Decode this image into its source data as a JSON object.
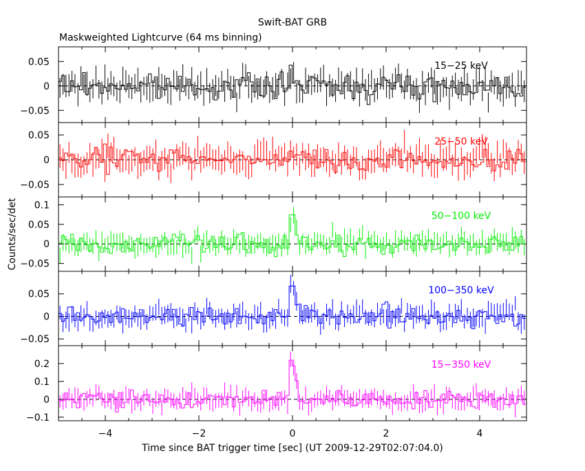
{
  "chart_data": {
    "type": "line",
    "title": "Swift-BAT GRB",
    "subtitle": "Maskweighted Lightcurve (64 ms binning)",
    "xlabel": "Time since BAT trigger time [sec] (UT 2009-12-29T02:07:04.0)",
    "ylabel": "Counts/sec/det",
    "xlim": [
      -5,
      5
    ],
    "x_ticks": [
      -4,
      -2,
      0,
      2,
      4
    ],
    "x_tick_labels": [
      "−4",
      "−2",
      "0",
      "2",
      "4"
    ],
    "bin_width_sec": 0.064,
    "panels": [
      {
        "name": "15-25 keV",
        "label": "15−25 keV",
        "color": "#000000",
        "ylim": [
          -0.075,
          0.08
        ],
        "y_ticks": [
          -0.05,
          0,
          0.05
        ],
        "y_tick_labels": [
          "−0.05",
          "0",
          "0.05"
        ],
        "error": 0.022,
        "noise": 0.018,
        "peak": 0.02
      },
      {
        "name": "25-50 keV",
        "label": "25−50 keV",
        "color": "#ff0000",
        "ylim": [
          -0.075,
          0.075
        ],
        "y_ticks": [
          -0.05,
          0,
          0.05
        ],
        "y_tick_labels": [
          "−0.05",
          "0",
          "0.05"
        ],
        "error": 0.022,
        "noise": 0.018,
        "peak": 0.02
      },
      {
        "name": "50-100 keV",
        "label": "50−100 keV",
        "color": "#00ee00",
        "ylim": [
          -0.07,
          0.12
        ],
        "y_ticks": [
          -0.05,
          0,
          0.05,
          0.1
        ],
        "y_tick_labels": [
          "−0.05",
          "0",
          "0.05",
          "0.1"
        ],
        "error": 0.02,
        "noise": 0.017,
        "peak": 0.06
      },
      {
        "name": "100-350 keV",
        "label": "100−350 keV",
        "color": "#0000ff",
        "ylim": [
          -0.065,
          0.1
        ],
        "y_ticks": [
          -0.05,
          0,
          0.05
        ],
        "y_tick_labels": [
          "−0.05",
          "0",
          "0.05"
        ],
        "error": 0.018,
        "noise": 0.016,
        "peak": 0.06
      },
      {
        "name": "15-350 keV",
        "label": "15−350 keV",
        "color": "#ff00ff",
        "ylim": [
          -0.12,
          0.3
        ],
        "y_ticks": [
          -0.1,
          0,
          0.1,
          0.2
        ],
        "y_tick_labels": [
          "−0.1",
          "0",
          "0.1",
          "0.2"
        ],
        "error": 0.04,
        "noise": 0.035,
        "peak": 0.2
      }
    ],
    "grid": false,
    "legend": "none"
  }
}
